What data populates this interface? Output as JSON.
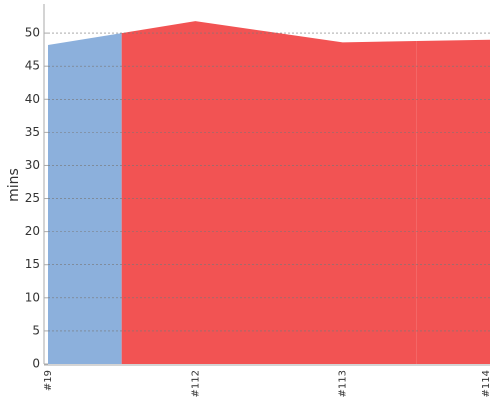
{
  "chart_data": {
    "type": "area",
    "y_label": "mins",
    "categories": [
      "#19",
      "#112",
      "#113",
      "#114"
    ],
    "series": [
      {
        "values": [
          48.2,
          51.8,
          48.6,
          49.0
        ],
        "colors": [
          "#8cb0dc",
          "#f25353",
          "#f25353",
          "#f25353"
        ]
      }
    ],
    "ylim": [
      0,
      55
    ],
    "yticks": [
      0,
      5,
      10,
      15,
      20,
      25,
      30,
      35,
      40,
      45,
      50
    ],
    "grid": true
  }
}
